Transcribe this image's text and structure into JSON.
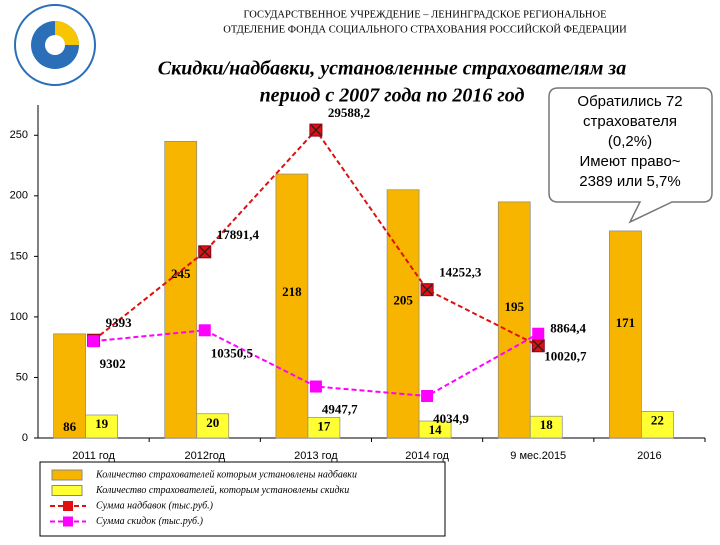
{
  "header": {
    "lines": [
      "ГОСУДАРСТВЕННОЕ УЧРЕЖДЕНИЕ – ЛЕНИНГРАДСКОЕ РЕГИОНАЛЬНОЕ",
      "ОТДЕЛЕНИЕ ФОНДА СОЦИАЛЬНОГО СТРАХОВАНИЯ РОССИЙСКОЙ ФЕДЕРАЦИИ"
    ]
  },
  "callout": {
    "lines": [
      "Обратились 72",
      "страхователя",
      "(0,2%)",
      "Имеют право~",
      "2389 или 5,7%"
    ]
  },
  "chart_data": {
    "type": "bar-line",
    "title": [
      "Скидки/надбавки, установленные страхователям за",
      "период с 2007 года по 2016 год"
    ],
    "categories": [
      "2011 год",
      "2012год",
      "2013 год",
      "2014 год",
      "9 мес.2015",
      "2016"
    ],
    "ylim": [
      0,
      275
    ],
    "yticks": [
      0,
      50,
      100,
      150,
      200,
      250
    ],
    "y2lim": [
      0,
      32000
    ],
    "series": [
      {
        "name": "Количество страхователей которым установлены надбавки",
        "type": "bar",
        "color": "#f7b500",
        "values": [
          86,
          245,
          218,
          205,
          195,
          171
        ]
      },
      {
        "name": "Количество страхователей, которым установлены скидки",
        "type": "bar",
        "color": "#ffff33",
        "values": [
          19,
          20,
          17,
          14,
          18,
          22
        ]
      },
      {
        "name": "Сумма надбавок (тыс.руб.)",
        "type": "line",
        "axis": "y2",
        "color": "#e01010",
        "values": [
          9393,
          17891.4,
          29588.2,
          14252.3,
          8864.4,
          null
        ],
        "value_labels": [
          "9393",
          "17891,4",
          "29588,2",
          "14252,3",
          "8864,4",
          null
        ]
      },
      {
        "name": "Сумма скидок (тыс.руб.)",
        "type": "line",
        "axis": "y2",
        "color": "#ff00ff",
        "values": [
          9302,
          10350.5,
          4947.7,
          4034.9,
          10020.7,
          null
        ],
        "value_labels": [
          "9302",
          "10350,5",
          "4947,7",
          "4034,9",
          "10020,7",
          null
        ]
      }
    ]
  }
}
